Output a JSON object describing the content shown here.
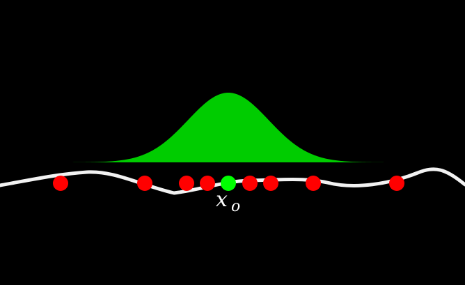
{
  "diagram": {
    "background_color": "#000000",
    "bell_color": "#00cc00",
    "curve_color": "#f2f2f2",
    "sample_point_color": "#ff0000",
    "center_point_color": "#00ff00",
    "label_color": "#ffffff",
    "center_label": {
      "main": "x",
      "subscript": "o"
    },
    "sample_points_count": 8
  }
}
